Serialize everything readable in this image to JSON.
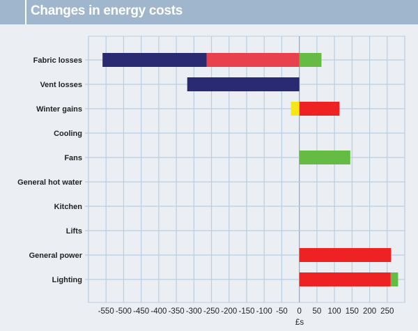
{
  "header": {
    "title": "Changes in energy costs"
  },
  "chart_data": {
    "type": "bar",
    "orientation": "horizontal",
    "stacked": true,
    "title": "Changes in energy costs",
    "xlabel": "£s",
    "ylabel": "",
    "xlim": [
      -600,
      300
    ],
    "xticks": [
      -550,
      -500,
      -450,
      -400,
      -350,
      -300,
      -250,
      -200,
      -150,
      -100,
      -50,
      0,
      50,
      100,
      150,
      200,
      250
    ],
    "grid": true,
    "categories": [
      "Fabric losses",
      "Vent losses",
      "Winter gains",
      "Cooling",
      "Fans",
      "General hot water",
      "Kitchen",
      "Lifts",
      "General power",
      "Lighting"
    ],
    "segments": [
      [
        {
          "from": -560,
          "to": -264,
          "color": "#2a2a72"
        },
        {
          "from": -264,
          "to": 0,
          "color": "#e8404c"
        },
        {
          "from": 0,
          "to": 63,
          "color": "#66bb44"
        }
      ],
      [
        {
          "from": -319,
          "to": 0,
          "color": "#2a2a72"
        }
      ],
      [
        {
          "from": -24,
          "to": 0,
          "color": "#f5e616"
        },
        {
          "from": 0,
          "to": 114,
          "color": "#ee2222"
        }
      ],
      [],
      [
        {
          "from": 0,
          "to": 145,
          "color": "#66bb44"
        }
      ],
      [],
      [],
      [],
      [
        {
          "from": 0,
          "to": 261,
          "color": "#ee2222"
        }
      ],
      [
        {
          "from": 0,
          "to": 260,
          "color": "#ee2222"
        },
        {
          "from": 260,
          "to": 281,
          "color": "#66bb44"
        }
      ]
    ]
  }
}
